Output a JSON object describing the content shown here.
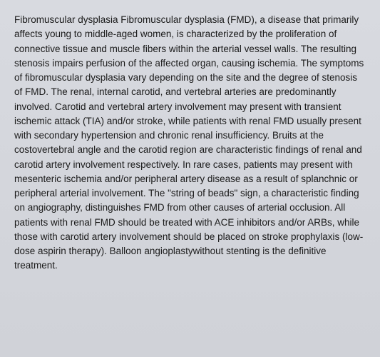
{
  "document": {
    "body_text": "Fibromuscular dysplasia Fibromuscular dysplasia (FMD), a disease that primarily affects young to middle-aged women, is characterized by the proliferation of connective tissue and muscle fibers within the arterial vessel walls. The resulting stenosis impairs perfusion of the affected organ, causing ischemia. The symptoms of fibromuscular dysplasia vary depending on the site and the degree of stenosis of FMD. The renal, internal carotid, and vertebral arteries are predominantly involved. Carotid and vertebral artery involvement may present with transient ischemic attack (TIA) and/or stroke, while patients with renal FMD usually present with secondary hypertension and chronic renal insufficiency. Bruits at the costovertebral angle and the carotid region are characteristic findings of renal and carotid artery involvement respectively. In rare cases, patients may present with mesenteric ischemia and/or peripheral artery disease as a result of splanchnic or peripheral arterial involvement. The \"string of beads\" sign, a characteristic finding on angiography, distinguishes FMD from other causes of arterial occlusion. All patients with renal FMD should be treated with ACE inhibitors and/or ARBs, while those with carotid artery involvement should be placed on stroke prophylaxis (low-dose aspirin therapy). Balloon angioplastywithout stenting is the definitive treatment.",
    "background_color": "#d6d8de",
    "text_color": "#1a1a1a",
    "font_size": 13.5,
    "line_height": 1.5
  }
}
